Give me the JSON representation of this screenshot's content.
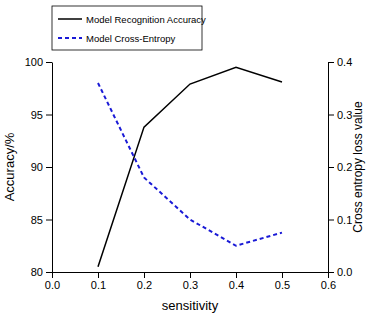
{
  "chart_data": {
    "type": "line",
    "x_label": "sensitivity",
    "y_label": "Accuracy/%",
    "y2_label": "Cross entropy loss value",
    "x": [
      0.1,
      0.2,
      0.3,
      0.4,
      0.5
    ],
    "series": [
      {
        "name": "Model Recognition Accuracy",
        "color": "#000000",
        "line_style": "solid",
        "values": [
          80.5,
          93.8,
          97.9,
          99.5,
          98.1
        ]
      },
      {
        "name": "Model Cross-Entropy",
        "color": "#1a1ad6",
        "line_style": "dashed",
        "axis": "y2",
        "values": [
          0.36,
          0.18,
          0.1,
          0.05,
          0.075
        ]
      }
    ],
    "xlim": [
      0,
      0.6
    ],
    "xticks": [
      {
        "value": 0,
        "label": "0.0"
      },
      0.1,
      0.2,
      0.3,
      0.4,
      0.5,
      0.6
    ],
    "ylim": [
      80,
      100
    ],
    "yticks": [
      80,
      85,
      90,
      95,
      100
    ],
    "y2lim": [
      0,
      0.4
    ],
    "y2ticks": [
      {
        "value": 0,
        "label": "0.0"
      },
      0.1,
      0.2,
      0.3,
      0.4
    ],
    "legend": "upper left",
    "grid": false
  }
}
